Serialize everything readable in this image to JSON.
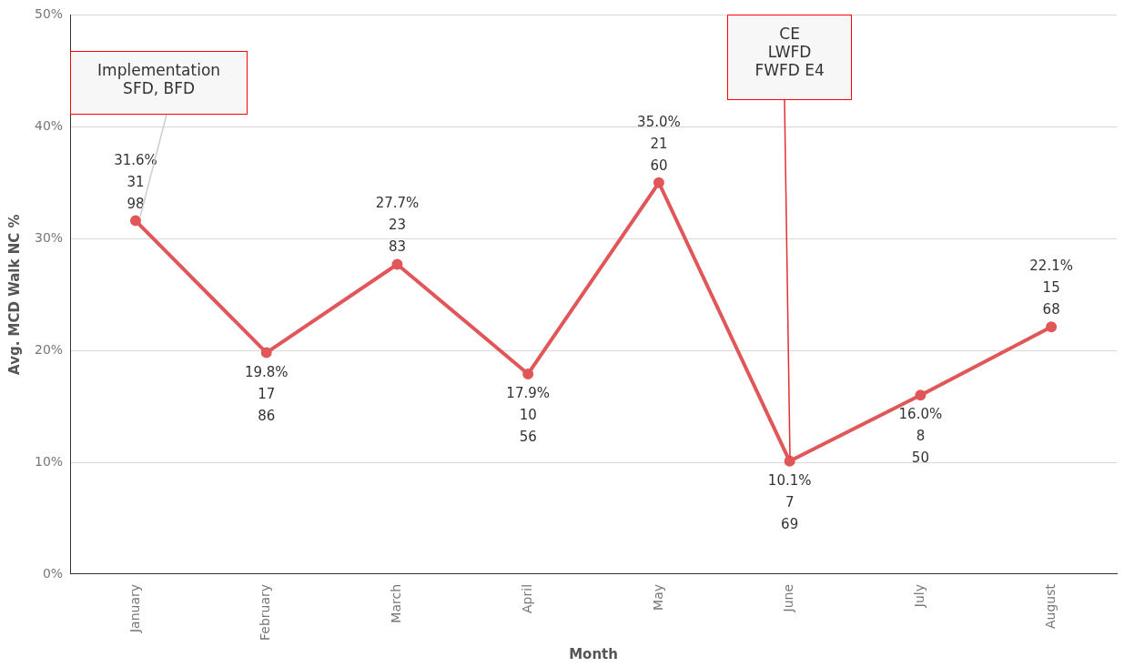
{
  "chart_data": {
    "type": "line",
    "xlabel": "Month",
    "ylabel": "Avg. MCD Walk NC %",
    "categories": [
      "January",
      "February",
      "March",
      "April",
      "May",
      "June",
      "July",
      "August"
    ],
    "series": [
      {
        "color": "#e15759",
        "values": [
          31.6,
          19.8,
          27.7,
          17.9,
          35.0,
          10.1,
          16.0,
          22.1
        ],
        "value_labels": [
          "31.6%\n31\n98",
          "19.8%\n17\n86",
          "27.7%\n23\n83",
          "17.9%\n10\n56",
          "35.0%\n21\n60",
          "10.1%\n7\n69",
          "16.0%\n8\n50",
          "22.1%\n15\n68"
        ]
      }
    ],
    "ylim": [
      0,
      50
    ],
    "yticks": [
      {
        "value": 0,
        "label": "0%"
      },
      {
        "value": 10,
        "label": "10%"
      },
      {
        "value": 20,
        "label": "20%"
      },
      {
        "value": 30,
        "label": "30%"
      },
      {
        "value": 40,
        "label": "40%"
      },
      {
        "value": 50,
        "label": "50%"
      }
    ],
    "grid": "y",
    "legend": false,
    "marker": "circle",
    "line_style": "solid",
    "annotations": [
      {
        "text": "Implementation\nSFD, BFD",
        "x": "January",
        "y": 31.6
      },
      "CE\nLWFD\nFWFD E4"
    ]
  }
}
